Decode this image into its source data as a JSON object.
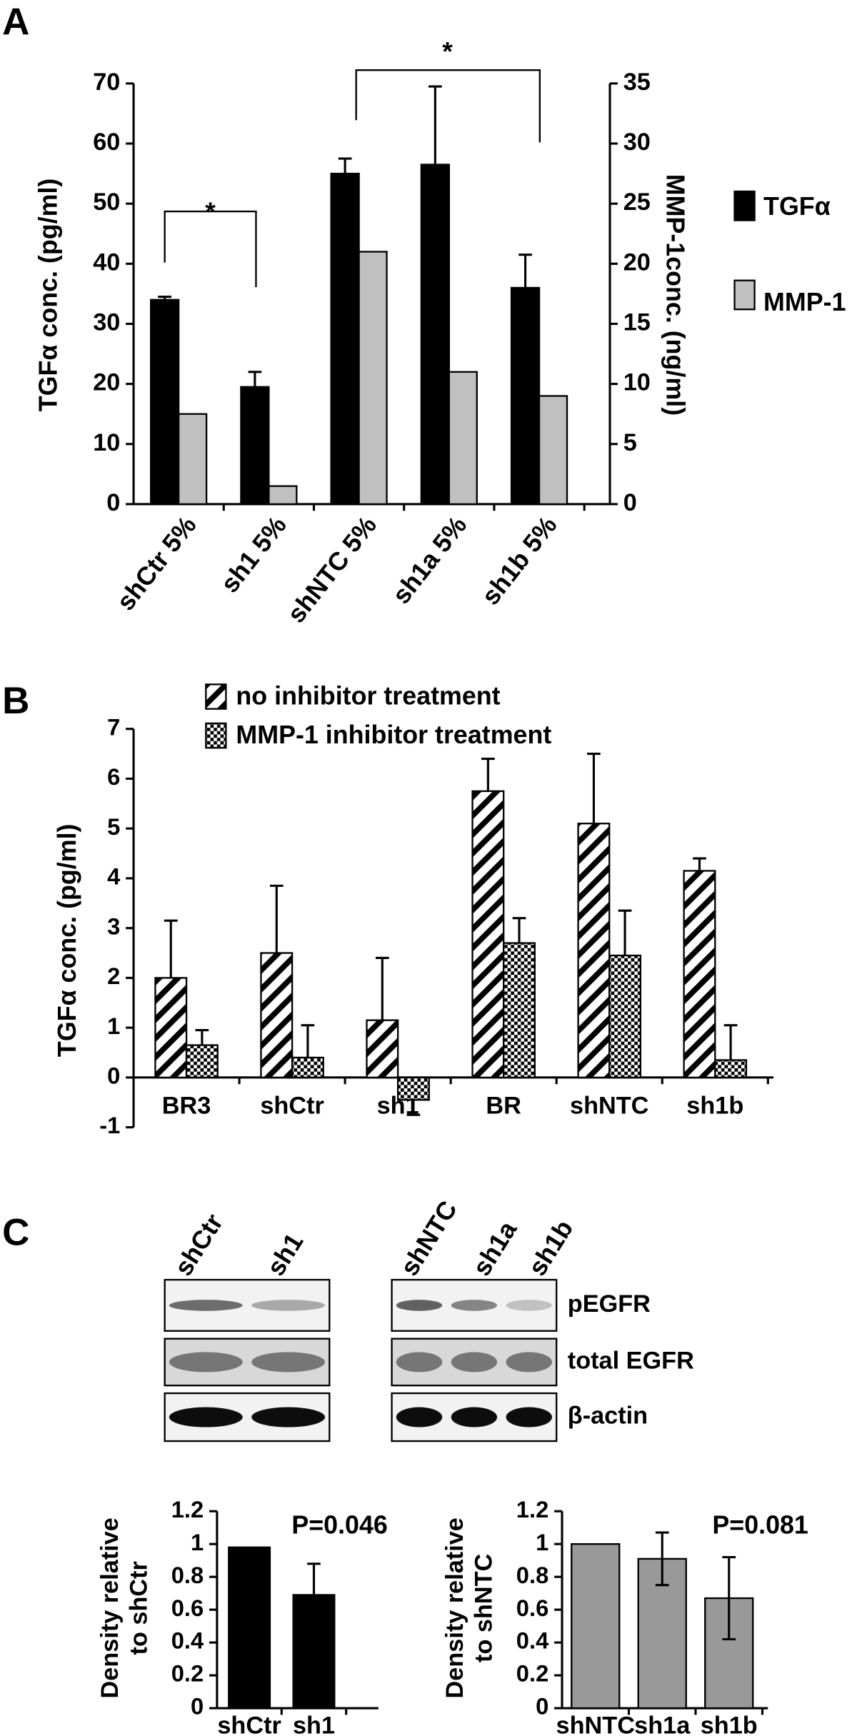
{
  "chart_data": [
    {
      "type": "bar",
      "panel": "A",
      "ylabel": "TGFα conc. (pg/ml)",
      "y2label": "MMP-1conc. (ng/ml)",
      "categories": [
        "shCtr 5%",
        "sh1 5%",
        "shNTC 5%",
        "sh1a 5%",
        "sh1b 5%"
      ],
      "series": [
        {
          "name": "TGFα",
          "color": "#000000",
          "values": [
            34,
            19.5,
            55,
            56.5,
            36
          ],
          "errors": [
            0.5,
            2.5,
            2.5,
            13,
            5.5
          ]
        },
        {
          "name": "MMP-1",
          "color": "#c0c0c0",
          "axis": "y2",
          "values": [
            7.5,
            1.5,
            21,
            11,
            9
          ]
        }
      ],
      "ylim": [
        0,
        70
      ],
      "yticks": [
        0,
        10,
        20,
        30,
        40,
        50,
        60,
        70
      ],
      "y2lim": [
        0,
        35
      ],
      "y2ticks": [
        0,
        5,
        10,
        15,
        20,
        25,
        30,
        35
      ],
      "annotations": [
        "*",
        "*"
      ],
      "legend": "right"
    },
    {
      "type": "bar",
      "panel": "B",
      "ylabel": "TGFα conc. (pg/ml)",
      "categories": [
        "BR3",
        "shCtr",
        "sh1",
        "BR",
        "shNTC",
        "sh1b"
      ],
      "series": [
        {
          "name": "no inhibitor treatment",
          "color": "#000000",
          "pattern": "stripes",
          "values": [
            2,
            2.5,
            1.15,
            5.75,
            5.1,
            4.15
          ],
          "errors": [
            1.15,
            1.35,
            1.25,
            0.65,
            1.4,
            0.25
          ]
        },
        {
          "name": "MMP-1 inhibitor treatment",
          "color": "#000000",
          "pattern": "dots",
          "values": [
            0.65,
            0.4,
            -0.45,
            2.7,
            2.45,
            0.35
          ],
          "errors": [
            0.3,
            0.65,
            0.3,
            0.5,
            0.9,
            0.7
          ]
        }
      ],
      "ylim": [
        -1,
        7
      ],
      "yticks": [
        -1,
        0,
        1,
        2,
        3,
        4,
        5,
        6,
        7
      ],
      "legend": "top"
    },
    {
      "type": "bar",
      "ylabel": [
        "Density relative",
        "to shCtr"
      ],
      "categories": [
        "shCtr",
        "sh1"
      ],
      "series": [
        {
          "color": "#000000",
          "values": [
            0.98,
            0.69
          ],
          "errors": [
            null,
            0.19
          ]
        }
      ],
      "ylim": [
        0,
        1.2
      ],
      "yticks": [
        0,
        0.2,
        0.4,
        0.6,
        0.8,
        1,
        1.2
      ],
      "annotations": [
        "P=0.046"
      ]
    },
    {
      "type": "bar",
      "ylabel": [
        "Density relative",
        "to shNTC"
      ],
      "categories": [
        "shNTC",
        "sh1a",
        "sh1b"
      ],
      "series": [
        {
          "color": "#999999",
          "values": [
            1.0,
            0.91,
            0.67
          ],
          "errors": [
            null,
            0.16,
            0.25
          ]
        }
      ],
      "ylim": [
        0,
        1.2
      ],
      "yticks": [
        0,
        0.2,
        0.4,
        0.6,
        0.8,
        1,
        1.2
      ],
      "annotations": [
        "P=0.081"
      ]
    }
  ],
  "blot": {
    "panel": "C",
    "lanes_left": [
      "shCtr",
      "sh1"
    ],
    "lanes_right": [
      "shNTC",
      "sh1a",
      "sh1b"
    ],
    "rows": [
      "pEGFR",
      "total EGFR",
      "β-actin"
    ]
  }
}
